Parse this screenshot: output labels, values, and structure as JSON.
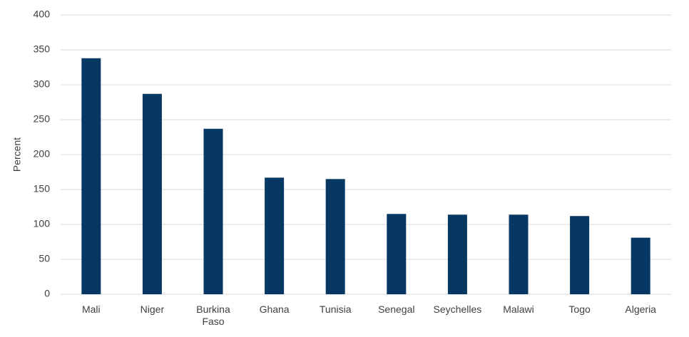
{
  "chart_data": {
    "type": "bar",
    "y_label": "Percent",
    "categories": [
      "Mali",
      "Niger",
      "Burkina Faso",
      "Ghana",
      "Tunisia",
      "Senegal",
      "Seychelles",
      "Malawi",
      "Togo",
      "Algeria"
    ],
    "values": [
      338,
      287,
      237,
      167,
      165,
      115,
      114,
      114,
      112,
      81
    ],
    "color": "#073763",
    "ylim": [
      0,
      400
    ],
    "yticks": [
      0,
      50,
      100,
      150,
      200,
      250,
      300,
      350,
      400
    ],
    "grid": true
  }
}
